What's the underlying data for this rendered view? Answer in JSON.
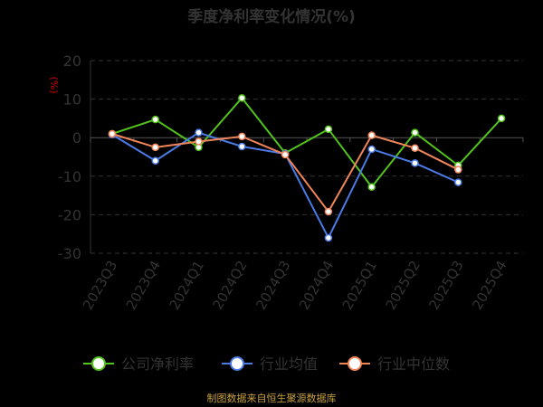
{
  "chart_data": {
    "type": "line",
    "title": "季度净利率变化情况(%)",
    "ylabel": "(%)",
    "categories": [
      "2023Q3",
      "2023Q4",
      "2024Q1",
      "2024Q2",
      "2024Q3",
      "2024Q4",
      "2025Q1",
      "2025Q2",
      "2025Q3",
      "2025Q4"
    ],
    "yticks": [
      20,
      10,
      0,
      -10,
      -20,
      -30
    ],
    "ylim": [
      -30,
      20
    ],
    "grid": true,
    "legend_position": "bottom",
    "series": [
      {
        "name": "公司净利率",
        "color": "#52c41a",
        "values": [
          1.0,
          4.7,
          -2.5,
          10.3,
          -4.0,
          2.2,
          -12.8,
          1.3,
          -7.2,
          5.0
        ]
      },
      {
        "name": "行业均值",
        "color": "#4a7be6",
        "values": [
          0.8,
          -6.0,
          1.3,
          -2.3,
          -4.2,
          -26.0,
          -3.0,
          -6.6,
          -11.6,
          null
        ]
      },
      {
        "name": "行业中位数",
        "color": "#f0855a",
        "values": [
          1.0,
          -2.5,
          -1.0,
          0.3,
          -4.4,
          -19.2,
          0.6,
          -2.7,
          -8.3,
          null
        ]
      }
    ],
    "source": "制图数据来自恒生聚源数据库"
  }
}
